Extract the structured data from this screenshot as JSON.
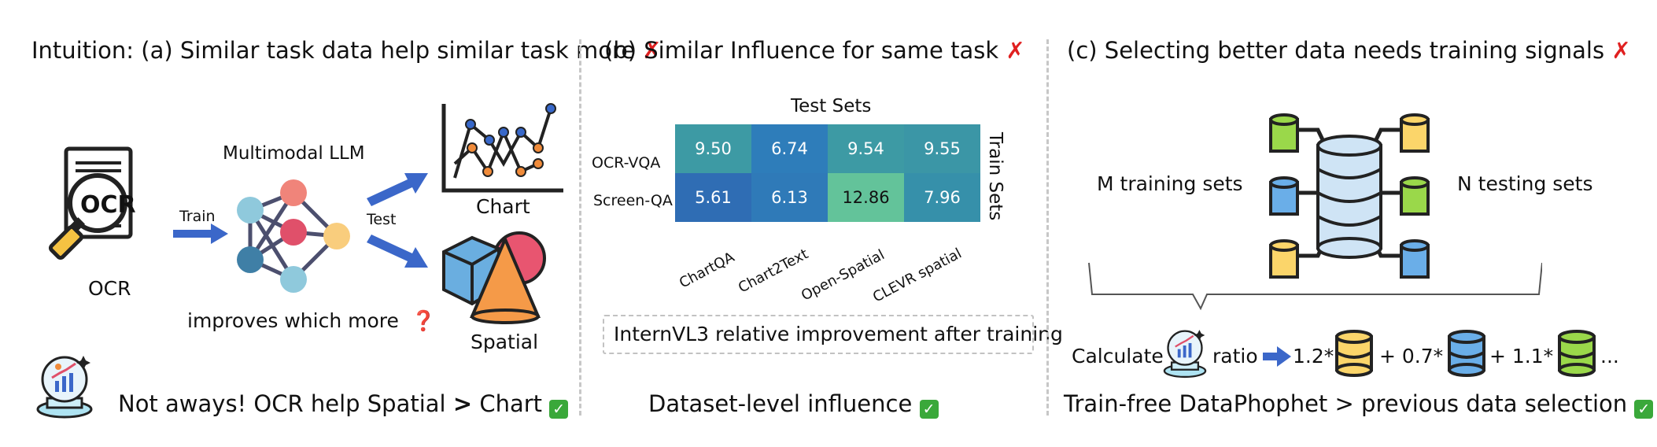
{
  "panel_a": {
    "title": "Intuition: (a) Similar task data help similar task more",
    "ocr_icon_text": "OCR",
    "ocr_label": "OCR",
    "train_label": "Train",
    "model_label": "Multimodal LLM",
    "test_label": "Test",
    "chart_label": "Chart",
    "spatial_label": "Spatial",
    "question_text": "improves which more",
    "question_mark": "❓",
    "conclusion_prefix": "Not aways! OCR help Spatial",
    "conclusion_gt": ">",
    "conclusion_suffix": "Chart",
    "check_mark": "✓",
    "x_mark": "✗"
  },
  "panel_b": {
    "title": "(b) Similar Influence for same task",
    "x_mark": "✗",
    "heatmap": {
      "test_sets_label": "Test Sets",
      "train_sets_label": "Train Sets",
      "rows": [
        "OCR-VQA",
        "Screen-QA"
      ],
      "columns": [
        "ChartQA",
        "Chart2Text",
        "Open-Spatial",
        "CLEVR spatial"
      ],
      "values": [
        [
          "9.50",
          "6.74",
          "9.54",
          "9.55"
        ],
        [
          "5.61",
          "6.13",
          "12.86",
          "7.96"
        ]
      ],
      "colors": [
        [
          "#3d9aa4",
          "#2e7dba",
          "#3d9aa4",
          "#3b96a6"
        ],
        [
          "#2f6db4",
          "#2f7ab8",
          "#63c39a",
          "#3690aa"
        ]
      ]
    },
    "caption": "InternVL3 relative improvement after training",
    "conclusion": "Dataset-level influence",
    "check_mark": "✓"
  },
  "panel_c": {
    "title": "(c) Selecting better data needs training signals",
    "x_mark": "✗",
    "m_label": "M training sets",
    "n_label": "N testing sets",
    "calculate_label": "Calculate",
    "ratio_label": "ratio",
    "coef1": "1.2*",
    "coef2": "+ 0.7*",
    "coef3": "+ 1.1*",
    "ellipsis": "...",
    "conclusion": "Train-free DataPhophet > previous data selection",
    "check_mark": "✓"
  },
  "colors": {
    "blue_arrow": "#3b67c9",
    "db_yellow": "#fbd56a",
    "db_blue": "#6aaee8",
    "db_green": "#9ad84a",
    "db_center": "#cfe4f5"
  }
}
